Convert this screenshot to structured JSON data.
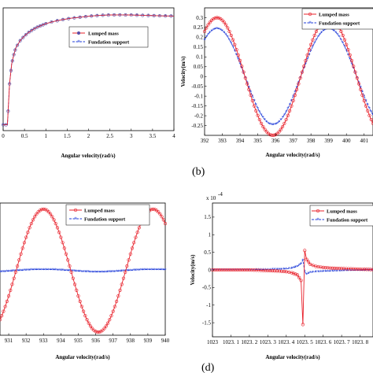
{
  "legend": {
    "lumped": "Lumped mass",
    "foundation": "Fundation support"
  },
  "colors": {
    "lumped": "#e8202a",
    "foundation": "#1f3cd9",
    "foundation_a": "#2b2f8f"
  },
  "chart_data": [
    {
      "type": "line",
      "panel": "",
      "xlabel": "Angular velocity(rad/s)",
      "ylabel": "",
      "xlim": [
        0,
        4
      ],
      "xticks": [
        "0",
        "0.5",
        "1",
        "1.5",
        "2",
        "2.5",
        "3",
        "3.5",
        "4"
      ],
      "yticks": [],
      "grid": false,
      "legend_position": "top-center",
      "series": [
        {
          "name": "Lumped mass",
          "x": [
            0,
            0.1,
            0.15,
            0.2,
            0.25,
            0.3,
            0.4,
            0.5,
            0.6,
            0.7,
            0.8,
            0.9,
            1.0,
            1.2,
            1.4,
            1.6,
            1.8,
            2.0,
            2.2,
            2.4,
            2.6,
            2.8,
            3.0,
            3.2,
            3.4,
            3.6,
            3.8,
            4.0
          ],
          "y": [
            0.0,
            0.0,
            0.35,
            0.52,
            0.6,
            0.66,
            0.72,
            0.76,
            0.79,
            0.815,
            0.835,
            0.85,
            0.865,
            0.885,
            0.9,
            0.912,
            0.92,
            0.928,
            0.934,
            0.938,
            0.94,
            0.94,
            0.939,
            0.937,
            0.935,
            0.933,
            0.931,
            0.93
          ]
        },
        {
          "name": "Fundation support",
          "x": [
            0,
            0.1,
            0.15,
            0.2,
            0.25,
            0.3,
            0.4,
            0.5,
            0.6,
            0.7,
            0.8,
            0.9,
            1.0,
            1.2,
            1.4,
            1.6,
            1.8,
            2.0,
            2.2,
            2.4,
            2.6,
            2.8,
            3.0,
            3.2,
            3.4,
            3.6,
            3.8,
            4.0
          ],
          "y": [
            0.0,
            0.0,
            0.35,
            0.52,
            0.6,
            0.66,
            0.72,
            0.76,
            0.79,
            0.815,
            0.835,
            0.85,
            0.865,
            0.885,
            0.9,
            0.912,
            0.92,
            0.928,
            0.934,
            0.938,
            0.94,
            0.94,
            0.939,
            0.937,
            0.935,
            0.933,
            0.931,
            0.93
          ]
        }
      ]
    },
    {
      "type": "line",
      "panel": "(b)",
      "xlabel": "Angular velocity(rad/s)",
      "ylabel": "Velocity(m/s)",
      "xlim": [
        392,
        401.5
      ],
      "ylim": [
        -0.3,
        0.35
      ],
      "xticks": [
        "392",
        "393",
        "394",
        "395",
        "396",
        "397",
        "398",
        "399",
        "400",
        "401"
      ],
      "yticks": [
        "0.3",
        "0.25",
        "0.2",
        "0.15",
        "0.1",
        "0.05",
        "0",
        "-0.05",
        "-0.1",
        "-0.15",
        "-0.2",
        "-0.25"
      ],
      "grid": false,
      "legend_position": "top-right",
      "series": [
        {
          "name": "Lumped mass",
          "amplitude": 0.3,
          "period": 6.3,
          "peak_x": 392.7
        },
        {
          "name": "Fundation support",
          "amplitude": 0.245,
          "period": 6.3,
          "peak_x": 392.7
        }
      ]
    },
    {
      "type": "line",
      "panel": "",
      "xlabel": "Angular velocity(rad/s)",
      "ylabel": "",
      "xlim": [
        930.5,
        940
      ],
      "xticks": [
        "931",
        "932",
        "933",
        "934",
        "935",
        "936",
        "937",
        "938",
        "939",
        "940"
      ],
      "yticks": [],
      "grid": false,
      "legend_position": "top-center",
      "series": [
        {
          "name": "Lumped mass",
          "amplitude": 1.0,
          "period": 6.3,
          "peak_x": 933.0
        },
        {
          "name": "Fundation support",
          "amplitude": 0.02,
          "period": 6.3,
          "peak_x": 933.0
        }
      ]
    },
    {
      "type": "line",
      "panel": "(d)",
      "xlabel": "Angular velocity(rad/s)",
      "ylabel": "Velocity(m/s)",
      "ylabel_multiplier": "x 10",
      "xlim": [
        1023,
        1023.87
      ],
      "ylim": [
        -1.9,
        1.9
      ],
      "xticks": [
        "1023",
        "1023. 1",
        "1023. 2",
        "1023. 3",
        "1023. 4",
        "1023. 5",
        "1023. 6",
        "1023. 7",
        "1023. 8"
      ],
      "yticks": [
        "1.5",
        "1",
        "0.5",
        "0",
        "-0.5",
        "-1",
        "-1.5"
      ],
      "grid": false,
      "legend_position": "top-right",
      "series": [
        {
          "name": "Lumped mass",
          "x": [
            1023.0,
            1023.1,
            1023.2,
            1023.3,
            1023.35,
            1023.4,
            1023.43,
            1023.46,
            1023.48,
            1023.49,
            1023.5,
            1023.51,
            1023.53,
            1023.56,
            1023.6,
            1023.65,
            1023.7,
            1023.8,
            1023.87
          ],
          "y": [
            0.0,
            0.0,
            0.0,
            -0.02,
            -0.03,
            -0.05,
            -0.08,
            -0.14,
            -0.3,
            -1.55,
            0.55,
            0.3,
            0.16,
            0.1,
            0.07,
            0.05,
            0.04,
            0.02,
            0.01
          ]
        },
        {
          "name": "Fundation support",
          "x": [
            1023.0,
            1023.1,
            1023.2,
            1023.3,
            1023.35,
            1023.4,
            1023.43,
            1023.46,
            1023.48,
            1023.49,
            1023.5,
            1023.51,
            1023.53,
            1023.56,
            1023.6,
            1023.65,
            1023.7,
            1023.8,
            1023.87
          ],
          "y": [
            0.0,
            0.0,
            0.0,
            0.01,
            0.02,
            0.03,
            0.05,
            0.1,
            0.18,
            0.28,
            -0.05,
            -0.12,
            -0.07,
            -0.05,
            -0.04,
            -0.03,
            -0.02,
            -0.01,
            0.0
          ]
        }
      ]
    }
  ]
}
